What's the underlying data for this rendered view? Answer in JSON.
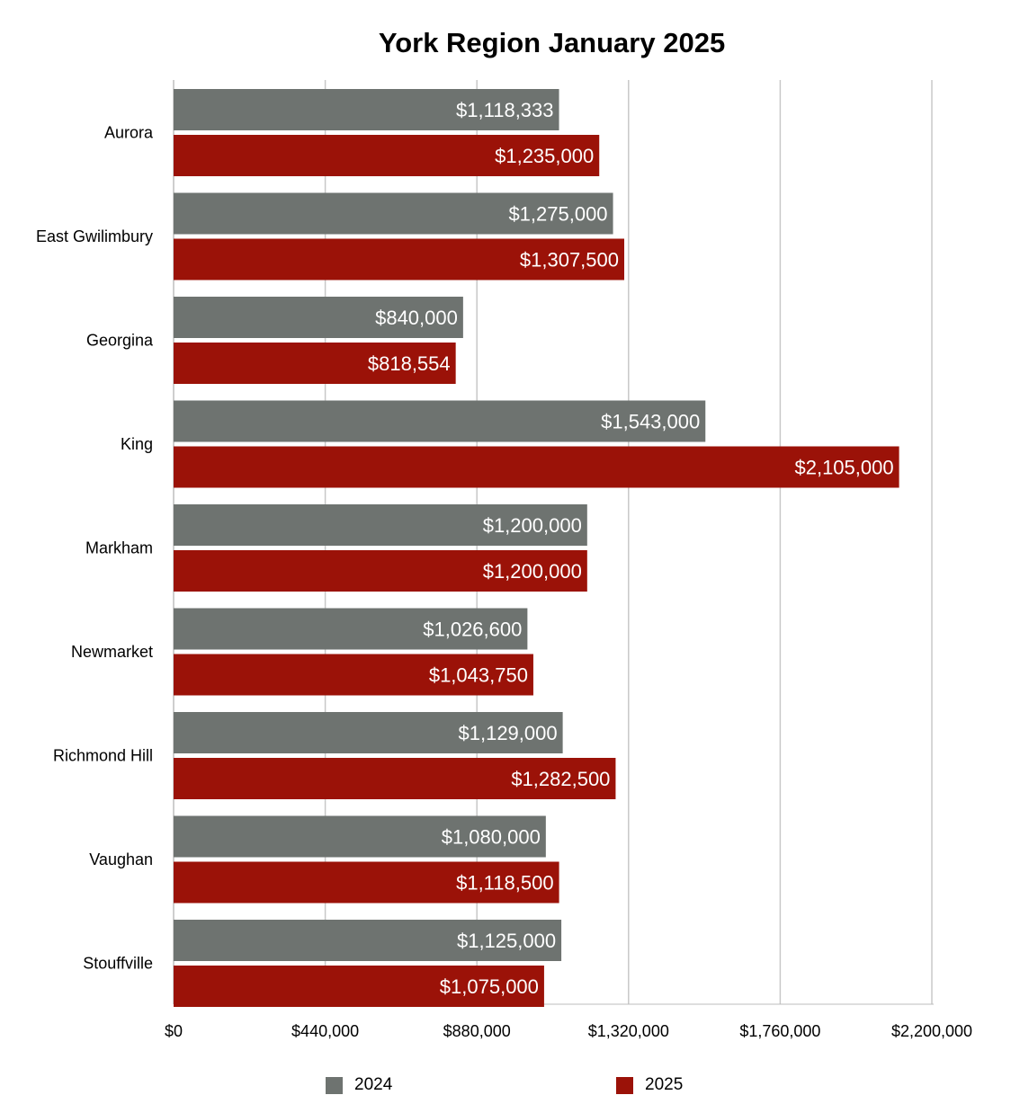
{
  "chart_data": {
    "type": "bar",
    "orientation": "horizontal",
    "title": "York Region January 2025",
    "xlabel": "",
    "ylabel": "",
    "xlim": [
      0,
      2200000
    ],
    "x_ticks": [
      0,
      440000,
      880000,
      1320000,
      1760000,
      2200000
    ],
    "x_tick_labels": [
      "$0",
      "$440,000",
      "$880,000",
      "$1,320,000",
      "$1,760,000",
      "$2,200,000"
    ],
    "grid": "vertical",
    "legend_position": "bottom",
    "categories": [
      "Aurora",
      "East Gwilimbury",
      "Georgina",
      "King",
      "Markham",
      "Newmarket",
      "Richmond Hill",
      "Vaughan",
      "Stouffville"
    ],
    "series": [
      {
        "name": "2024",
        "color": "#6e7370",
        "values": [
          1118333,
          1275000,
          840000,
          1543000,
          1200000,
          1026600,
          1129000,
          1080000,
          1125000
        ],
        "labels": [
          "$1,118,333",
          "$1,275,000",
          "$840,000",
          "$1,543,000",
          "$1,200,000",
          "$1,026,600",
          "$1,129,000",
          "$1,080,000",
          "$1,125,000"
        ]
      },
      {
        "name": "2025",
        "color": "#9b1208",
        "values": [
          1235000,
          1307500,
          818554,
          2105000,
          1200000,
          1043750,
          1282500,
          1118500,
          1075000
        ],
        "labels": [
          "$1,235,000",
          "$1,307,500",
          "$818,554",
          "$2,105,000",
          "$1,200,000",
          "$1,043,750",
          "$1,282,500",
          "$1,118,500",
          "$1,075,000"
        ]
      }
    ]
  }
}
